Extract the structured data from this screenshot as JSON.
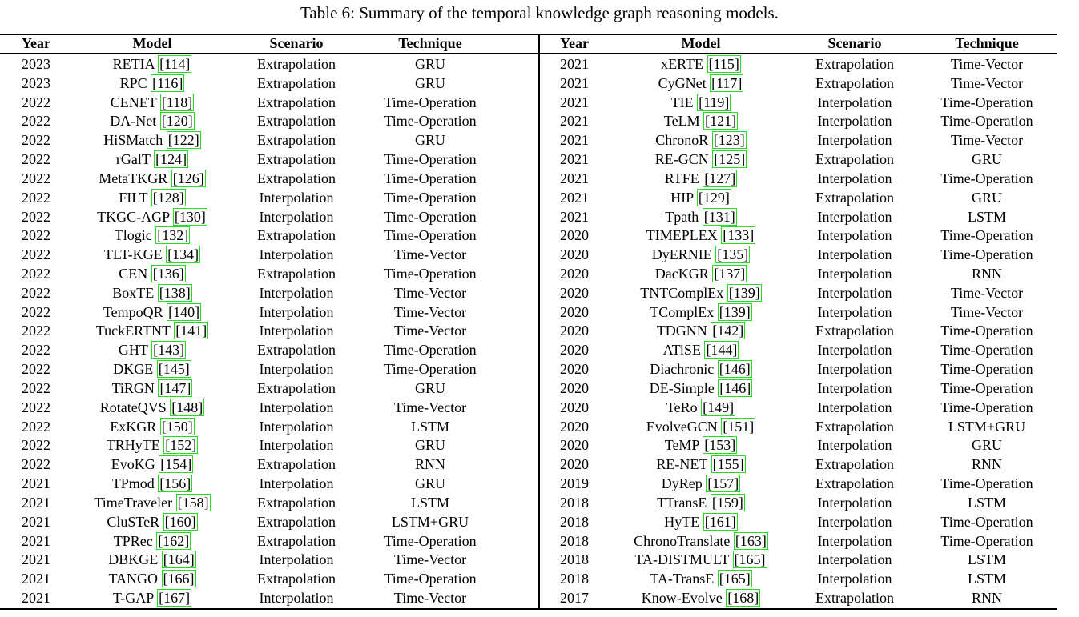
{
  "caption": "Table 6: Summary of the temporal knowledge graph reasoning models.",
  "table": {
    "left": {
      "header": [
        "Year",
        "Model",
        "Scenario",
        "Technique"
      ],
      "rows": [
        [
          "2023",
          "RETIA",
          "[114]",
          "Extrapolation",
          "GRU"
        ],
        [
          "2023",
          "RPC",
          "[116]",
          "Extrapolation",
          "GRU"
        ],
        [
          "2022",
          "CENET",
          "[118]",
          "Extrapolation",
          "Time-Operation"
        ],
        [
          "2022",
          "DA-Net",
          "[120]",
          "Extrapolation",
          "Time-Operation"
        ],
        [
          "2022",
          "HiSMatch",
          "[122]",
          "Extrapolation",
          "GRU"
        ],
        [
          "2022",
          "rGalT",
          "[124]",
          "Extrapolation",
          "Time-Operation"
        ],
        [
          "2022",
          "MetaTKGR",
          "[126]",
          "Extrapolation",
          "Time-Operation"
        ],
        [
          "2022",
          "FILT",
          "[128]",
          "Interpolation",
          "Time-Operation"
        ],
        [
          "2022",
          "TKGC-AGP",
          "[130]",
          "Interpolation",
          "Time-Operation"
        ],
        [
          "2022",
          "Tlogic",
          "[132]",
          "Extrapolation",
          "Time-Operation"
        ],
        [
          "2022",
          "TLT-KGE",
          "[134]",
          "Interpolation",
          "Time-Vector"
        ],
        [
          "2022",
          "CEN",
          "[136]",
          "Extrapolation",
          "Time-Operation"
        ],
        [
          "2022",
          "BoxTE",
          "[138]",
          "Interpolation",
          "Time-Vector"
        ],
        [
          "2022",
          "TempoQR",
          "[140]",
          "Interpolation",
          "Time-Vector"
        ],
        [
          "2022",
          "TuckERTNT",
          "[141]",
          "Interpolation",
          "Time-Vector"
        ],
        [
          "2022",
          "GHT",
          "[143]",
          "Extrapolation",
          "Time-Operation"
        ],
        [
          "2022",
          "DKGE",
          "[145]",
          "Interpolation",
          "Time-Operation"
        ],
        [
          "2022",
          "TiRGN",
          "[147]",
          "Extrapolation",
          "GRU"
        ],
        [
          "2022",
          "RotateQVS",
          "[148]",
          "Interpolation",
          "Time-Vector"
        ],
        [
          "2022",
          "ExKGR",
          "[150]",
          "Interpolation",
          "LSTM"
        ],
        [
          "2022",
          "TRHyTE",
          "[152]",
          "Interpolation",
          "GRU"
        ],
        [
          "2022",
          "EvoKG",
          "[154]",
          "Extrapolation",
          "RNN"
        ],
        [
          "2021",
          "TPmod",
          "[156]",
          "Interpolation",
          "GRU"
        ],
        [
          "2021",
          "TimeTraveler",
          "[158]",
          "Extrapolation",
          "LSTM"
        ],
        [
          "2021",
          "CluSTeR",
          "[160]",
          "Extrapolation",
          "LSTM+GRU"
        ],
        [
          "2021",
          "TPRec",
          "[162]",
          "Extrapolation",
          "Time-Operation"
        ],
        [
          "2021",
          "DBKGE",
          "[164]",
          "Interpolation",
          "Time-Vector"
        ],
        [
          "2021",
          "TANGO",
          "[166]",
          "Extrapolation",
          "Time-Operation"
        ],
        [
          "2021",
          "T-GAP",
          "[167]",
          "Interpolation",
          "Time-Vector"
        ]
      ]
    },
    "right": {
      "header": [
        "Year",
        "Model",
        "Scenario",
        "Technique"
      ],
      "rows": [
        [
          "2021",
          "xERTE",
          "[115]",
          "Extrapolation",
          "Time-Vector"
        ],
        [
          "2021",
          "CyGNet",
          "[117]",
          "Extrapolation",
          "Time-Vector"
        ],
        [
          "2021",
          "TIE",
          "[119]",
          "Interpolation",
          "Time-Operation"
        ],
        [
          "2021",
          "TeLM",
          "[121]",
          "Interpolation",
          "Time-Operation"
        ],
        [
          "2021",
          "ChronoR",
          "[123]",
          "Interpolation",
          "Time-Vector"
        ],
        [
          "2021",
          "RE-GCN",
          "[125]",
          "Extrapolation",
          "GRU"
        ],
        [
          "2021",
          "RTFE",
          "[127]",
          "Interpolation",
          "Time-Operation"
        ],
        [
          "2021",
          "HIP",
          "[129]",
          "Extrapolation",
          "GRU"
        ],
        [
          "2021",
          "Tpath",
          "[131]",
          "Interpolation",
          "LSTM"
        ],
        [
          "2020",
          "TIMEPLEX",
          "[133]",
          "Interpolation",
          "Time-Operation"
        ],
        [
          "2020",
          "DyERNIE",
          "[135]",
          "Interpolation",
          "Time-Operation"
        ],
        [
          "2020",
          "DacKGR",
          "[137]",
          "Interpolation",
          "RNN"
        ],
        [
          "2020",
          "TNTComplEx",
          "[139]",
          "Interpolation",
          "Time-Vector"
        ],
        [
          "2020",
          "TComplEx",
          "[139]",
          "Interpolation",
          "Time-Vector"
        ],
        [
          "2020",
          "TDGNN",
          "[142]",
          "Extrapolation",
          "Time-Operation"
        ],
        [
          "2020",
          "ATiSE",
          "[144]",
          "Interpolation",
          "Time-Operation"
        ],
        [
          "2020",
          "Diachronic",
          "[146]",
          "Interpolation",
          "Time-Operation"
        ],
        [
          "2020",
          "DE-Simple",
          "[146]",
          "Interpolation",
          "Time-Operation"
        ],
        [
          "2020",
          "TeRo",
          "[149]",
          "Interpolation",
          "Time-Operation"
        ],
        [
          "2020",
          "EvolveGCN",
          "[151]",
          "Extrapolation",
          "LSTM+GRU"
        ],
        [
          "2020",
          "TeMP",
          "[153]",
          "Interpolation",
          "GRU"
        ],
        [
          "2020",
          "RE-NET",
          "[155]",
          "Extrapolation",
          "RNN"
        ],
        [
          "2019",
          "DyRep",
          "[157]",
          "Extrapolation",
          "Time-Operation"
        ],
        [
          "2018",
          "TTransE",
          "[159]",
          "Interpolation",
          "LSTM"
        ],
        [
          "2018",
          "HyTE",
          "[161]",
          "Interpolation",
          "Time-Operation"
        ],
        [
          "2018",
          "ChronoTranslate",
          "[163]",
          "Interpolation",
          "Time-Operation"
        ],
        [
          "2018",
          "TA-DISTMULT",
          "[165]",
          "Interpolation",
          "LSTM"
        ],
        [
          "2018",
          "TA-TransE",
          "[165]",
          "Interpolation",
          "LSTM"
        ],
        [
          "2017",
          "Know-Evolve",
          "[168]",
          "Extrapolation",
          "RNN"
        ]
      ]
    }
  }
}
